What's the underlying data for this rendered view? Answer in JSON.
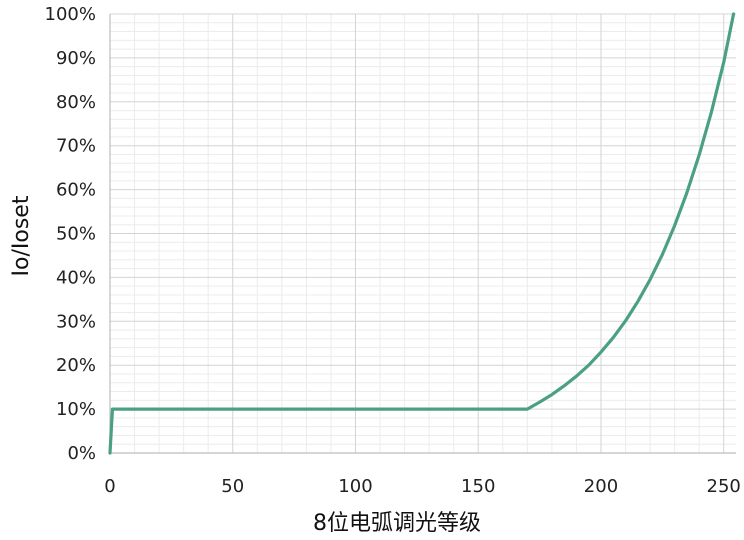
{
  "chart_data": {
    "type": "line",
    "title": "",
    "xlabel": "8位电弧调光等级",
    "ylabel": "Io/Ioset",
    "xlim": [
      0,
      255
    ],
    "ylim": [
      0,
      100
    ],
    "x_ticks": [
      0,
      50,
      100,
      150,
      200,
      250
    ],
    "x_tick_labels": [
      "0",
      "50",
      "100",
      "150",
      "200",
      "250"
    ],
    "y_ticks": [
      0,
      10,
      20,
      30,
      40,
      50,
      60,
      70,
      80,
      90,
      100
    ],
    "y_tick_labels": [
      "0%",
      "10%",
      "20%",
      "30%",
      "40%",
      "50%",
      "60%",
      "70%",
      "80%",
      "90%",
      "100%"
    ],
    "grid": true,
    "legend": "none",
    "series": [
      {
        "color": "#4a9f85",
        "points": [
          [
            0,
            0
          ],
          [
            1,
            10
          ],
          [
            2,
            10
          ],
          [
            50,
            10
          ],
          [
            100,
            10
          ],
          [
            150,
            10
          ],
          [
            170,
            10
          ],
          [
            175,
            11.6
          ],
          [
            180,
            13.3
          ],
          [
            185,
            15.3
          ],
          [
            190,
            17.5
          ],
          [
            195,
            20.0
          ],
          [
            200,
            23.0
          ],
          [
            205,
            26.3
          ],
          [
            210,
            30.1
          ],
          [
            215,
            34.5
          ],
          [
            220,
            39.5
          ],
          [
            225,
            45.2
          ],
          [
            230,
            51.8
          ],
          [
            235,
            59.3
          ],
          [
            240,
            67.9
          ],
          [
            245,
            77.7
          ],
          [
            250,
            89.0
          ],
          [
            254,
            100
          ]
        ]
      }
    ]
  }
}
